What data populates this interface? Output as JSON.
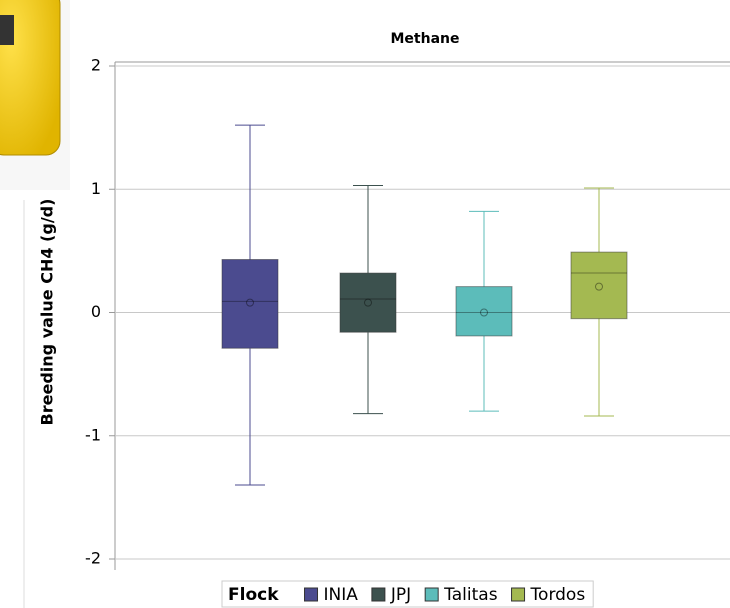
{
  "chart_data": {
    "type": "box",
    "title": "Methane",
    "y_label": "Breeding value CH4 (g/d)",
    "legend_title": "Flock",
    "ylim": [
      -2,
      2
    ],
    "yticks": [
      -2,
      -1,
      0,
      1,
      2
    ],
    "grid": true,
    "series": [
      {
        "name": "INIA",
        "color": "#4b4b8f",
        "min": -1.4,
        "q1": -0.29,
        "median": 0.09,
        "q3": 0.43,
        "max": 1.52,
        "mean": 0.08
      },
      {
        "name": "JPJ",
        "color": "#3c514e",
        "min": -0.82,
        "q1": -0.16,
        "median": 0.11,
        "q3": 0.32,
        "max": 1.03,
        "mean": 0.08
      },
      {
        "name": "Talitas",
        "color": "#5cbcba",
        "min": -0.8,
        "q1": -0.19,
        "median": 0.0,
        "q3": 0.21,
        "max": 0.82,
        "mean": 0.0
      },
      {
        "name": "Tordos",
        "color": "#a4b951",
        "min": -0.84,
        "q1": -0.05,
        "median": 0.32,
        "q3": 0.49,
        "max": 1.01,
        "mean": 0.21
      }
    ]
  }
}
